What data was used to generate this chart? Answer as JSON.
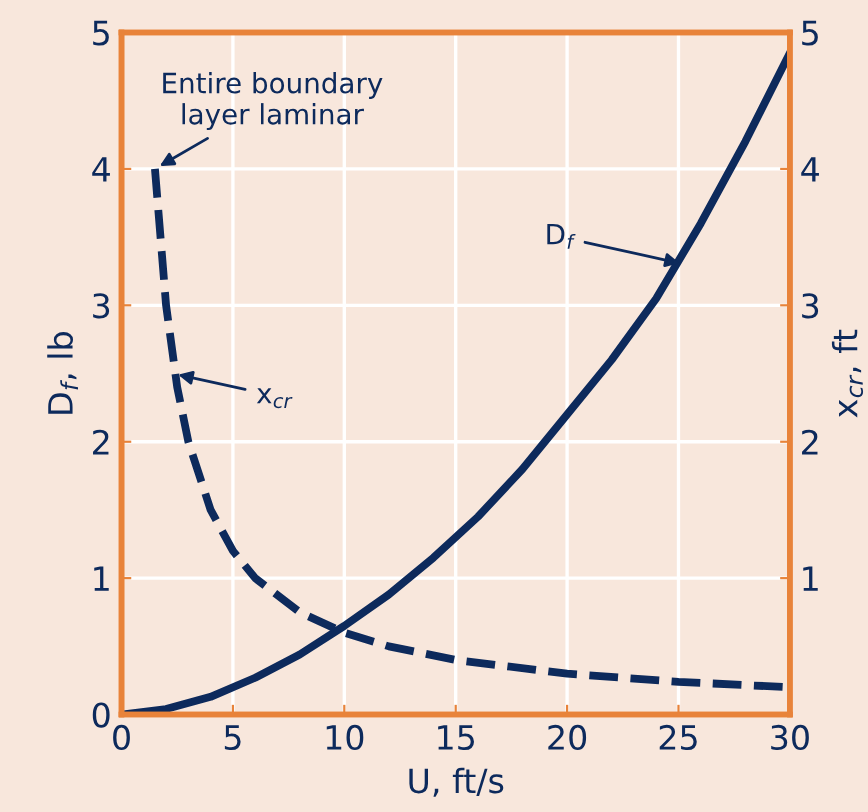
{
  "chart_data": {
    "type": "line",
    "xlabel": "U, ft/s",
    "ylabel": "D$_{f}$, lb",
    "y2label": "x$_{cr}$, ft",
    "xlim": [
      0,
      30
    ],
    "xticks": [
      0,
      5,
      10,
      15,
      20,
      25,
      30
    ],
    "ylim": [
      0,
      5
    ],
    "yticks": [
      0,
      1,
      2,
      3,
      4,
      5
    ],
    "y2lim": [
      0,
      5
    ],
    "y2ticks": [
      1,
      2,
      3,
      4,
      5
    ],
    "grid": true,
    "legend": false,
    "series": [
      {
        "x": [
          0,
          2,
          4,
          6,
          8,
          10,
          12,
          14,
          16,
          18,
          20,
          22,
          24,
          26,
          28,
          30
        ],
        "values": [
          0,
          0.04,
          0.13,
          0.27,
          0.44,
          0.65,
          0.88,
          1.15,
          1.45,
          1.8,
          2.2,
          2.6,
          3.05,
          3.6,
          4.2,
          4.85
        ],
        "color": "#0d2a5c",
        "line_style": "solid"
      },
      {
        "x": [
          1.5,
          2,
          2.5,
          3,
          4,
          5,
          6,
          8,
          10,
          12,
          15,
          20,
          25,
          30
        ],
        "values": [
          4.0,
          3.0,
          2.4,
          2.0,
          1.5,
          1.2,
          1.0,
          0.75,
          0.6,
          0.5,
          0.4,
          0.3,
          0.24,
          0.2
        ],
        "color": "#0d2a5c",
        "line_style": "dashed"
      }
    ],
    "annotations": [
      "Entire boundary\nlayer laminar",
      {
        "text": "x$_{cr}$",
        "x": 2.3,
        "y": 2.5
      },
      {
        "text": "D$_{f}$",
        "x": 25.3,
        "y": 3.3
      }
    ]
  }
}
